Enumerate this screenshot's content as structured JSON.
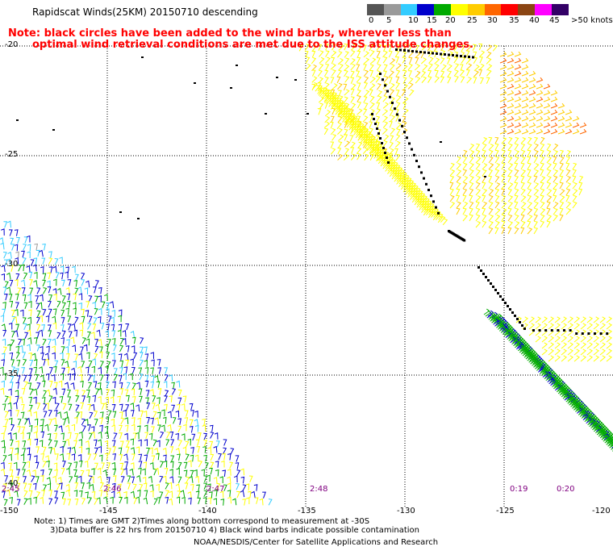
{
  "header": {
    "title": "Rapidscat Winds(25KM) 20150710 descending",
    "note_line1": "Note: black circles have been added to the wind barbs, wherever less than",
    "note_line2": "optimal wind retrieval conditions are met due to the ISS attitude changes."
  },
  "legend": {
    "labels": [
      "0",
      "5",
      "10",
      "15",
      "20",
      "25",
      "30",
      "35",
      "40",
      "45",
      ">50 knots"
    ],
    "colors": [
      "#555555",
      "#9a9a9a",
      "#33ccff",
      "#0000cc",
      "#00aa00",
      "#ffff00",
      "#ffcc00",
      "#ff6600",
      "#ff0000",
      "#8b4513",
      "#ff00ff",
      "#330066"
    ]
  },
  "map": {
    "lat_labels": [
      "-20",
      "-25",
      "-30",
      "-35",
      "-40"
    ],
    "lon_labels": [
      "-150",
      "-145",
      "-140",
      "-135",
      "-130",
      "-125",
      "-120"
    ],
    "time_labels": [
      "2:45",
      "2:46",
      "2:47",
      "2:48",
      "0:19",
      "0:20"
    ]
  },
  "footer": {
    "line1": "Note: 1) Times are GMT 2)Times along bottom correspond to measurement at -30S",
    "line2": "3)Data buffer is 22 hrs from 20150710 4) Black wind barbs indicate possible contamination",
    "line3": "NOAA/NESDIS/Center for Satellite Applications and Research"
  }
}
